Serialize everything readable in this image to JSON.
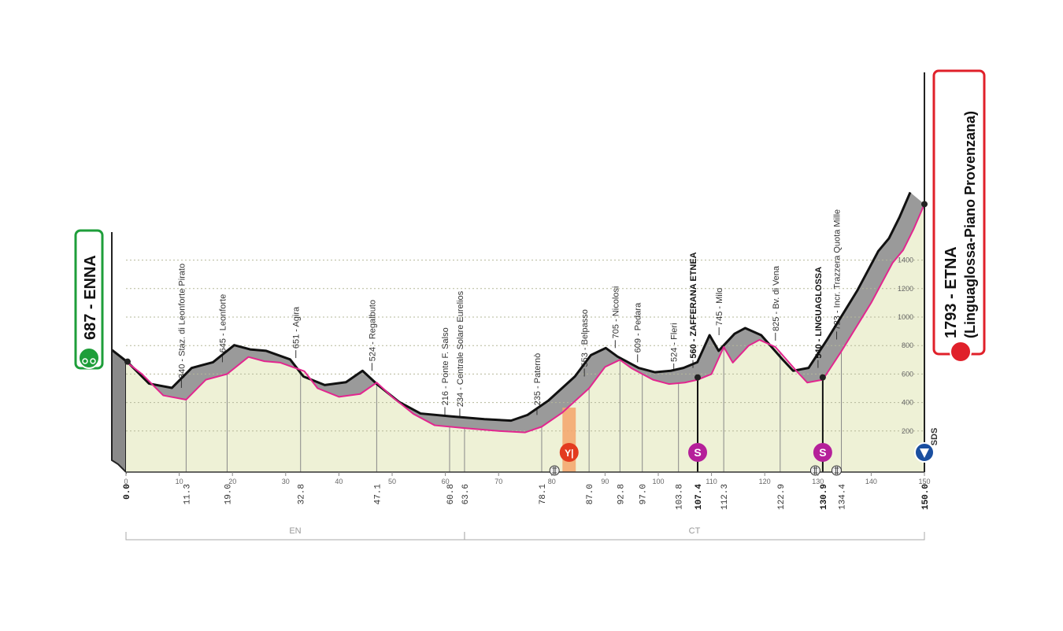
{
  "chart_data": {
    "type": "area",
    "title": "",
    "xlabel": "",
    "ylabel": "",
    "xlim": [
      0,
      150
    ],
    "ylim": [
      0,
      1800
    ],
    "x_ticks": [
      0,
      10,
      20,
      30,
      40,
      50,
      60,
      70,
      80,
      90,
      100,
      110,
      120,
      130,
      140,
      150
    ],
    "y_ticks": [
      200,
      400,
      600,
      800,
      1000,
      1200,
      1400
    ],
    "grid": true,
    "colors": {
      "road": "#e2268f",
      "fill": "#eef1d6",
      "relief": "#9a9a9a",
      "start": "#1e9e3a",
      "finish": "#e0202a",
      "sprint": "#b5209a",
      "feed": "#f4a46a",
      "kom": "#1a4fa0"
    },
    "profile": {
      "km": [
        0,
        3,
        7,
        11.3,
        15,
        19,
        23,
        26,
        29,
        32,
        33.5,
        36,
        40,
        44,
        47.1,
        50,
        54,
        58,
        63.6,
        70,
        75,
        78.1,
        82,
        87,
        90,
        92.8,
        95,
        99,
        102,
        105,
        107.4,
        110,
        112.3,
        114,
        117,
        119,
        122,
        126,
        128,
        130.9,
        134.4,
        140,
        144,
        146,
        148,
        150
      ],
      "elev": [
        687,
        600,
        450,
        420,
        560,
        600,
        720,
        690,
        680,
        640,
        620,
        500,
        440,
        460,
        540,
        440,
        320,
        240,
        220,
        200,
        190,
        230,
        330,
        500,
        650,
        700,
        640,
        560,
        530,
        540,
        560,
        600,
        790,
        680,
        800,
        840,
        790,
        620,
        540,
        560,
        760,
        1100,
        1380,
        1470,
        1620,
        1793
      ]
    },
    "start": {
      "km": 0.0,
      "elev": 687,
      "name": "ENNA",
      "label": "687 - ENNA"
    },
    "finish": {
      "km": 150.0,
      "elev": 1793,
      "name": "ETNA",
      "label": "1793 - ETNA",
      "sublabel": "(Linguaglossa-Piano Provenzana)"
    },
    "waypoints": [
      {
        "km": "11.3",
        "elev": 340,
        "label": "340 - Staz. di Leonforte Pirato",
        "bold": false
      },
      {
        "km": "19.0",
        "elev": 645,
        "label": "645 - Leonforte",
        "bold": false
      },
      {
        "km": "32.8",
        "elev": 651,
        "label": "651 - Agira",
        "bold": false
      },
      {
        "km": "47.1",
        "elev": 524,
        "label": "524 - Regalbuto",
        "bold": false
      },
      {
        "km": "60.8",
        "elev": 216,
        "label": "216 - Ponte F. Salso",
        "bold": false
      },
      {
        "km": "63.6",
        "elev": 234,
        "label": "234 - Centrale Solare Eurelios",
        "bold": false
      },
      {
        "km": "78.1",
        "elev": 235,
        "label": "235 - Paternò",
        "bold": false
      },
      {
        "km": "87.0",
        "elev": 553,
        "label": "553 - Belpasso",
        "bold": false
      },
      {
        "km": "92.8",
        "elev": 705,
        "label": "705 - Nicolosi",
        "bold": false
      },
      {
        "km": "97.0",
        "elev": 609,
        "label": "609 - Pedara",
        "bold": false
      },
      {
        "km": "103.8",
        "elev": 524,
        "label": "524 - Fleri",
        "bold": false
      },
      {
        "km": "107.4",
        "elev": 560,
        "label": "560 - ZAFFERANA ETNEA",
        "bold": true
      },
      {
        "km": "112.3",
        "elev": 745,
        "label": "745 - Milo",
        "bold": false
      },
      {
        "km": "122.9",
        "elev": 825,
        "label": "825 - Bv. di Vena",
        "bold": false
      },
      {
        "km": "130.9",
        "elev": 540,
        "label": "540 - LINGUAGLOSSA",
        "bold": true
      },
      {
        "km": "134.4",
        "elev": 723,
        "label": "723 - Incr. Trazzera Quota Mille",
        "bold": false
      }
    ],
    "sprints": [
      {
        "km": 107.4,
        "letter": "S"
      },
      {
        "km": 130.9,
        "letter": "S"
      }
    ],
    "feed_zone": {
      "from_km": 82,
      "to_km": 84.5
    },
    "level_crossings_km": [
      80.5,
      129.5,
      133.5
    ],
    "provinces": [
      {
        "name": "EN",
        "from_km": 0,
        "to_km": 63.6
      },
      {
        "name": "CT",
        "from_km": 63.6,
        "to_km": 150
      }
    ],
    "sds_label": "SDS"
  }
}
